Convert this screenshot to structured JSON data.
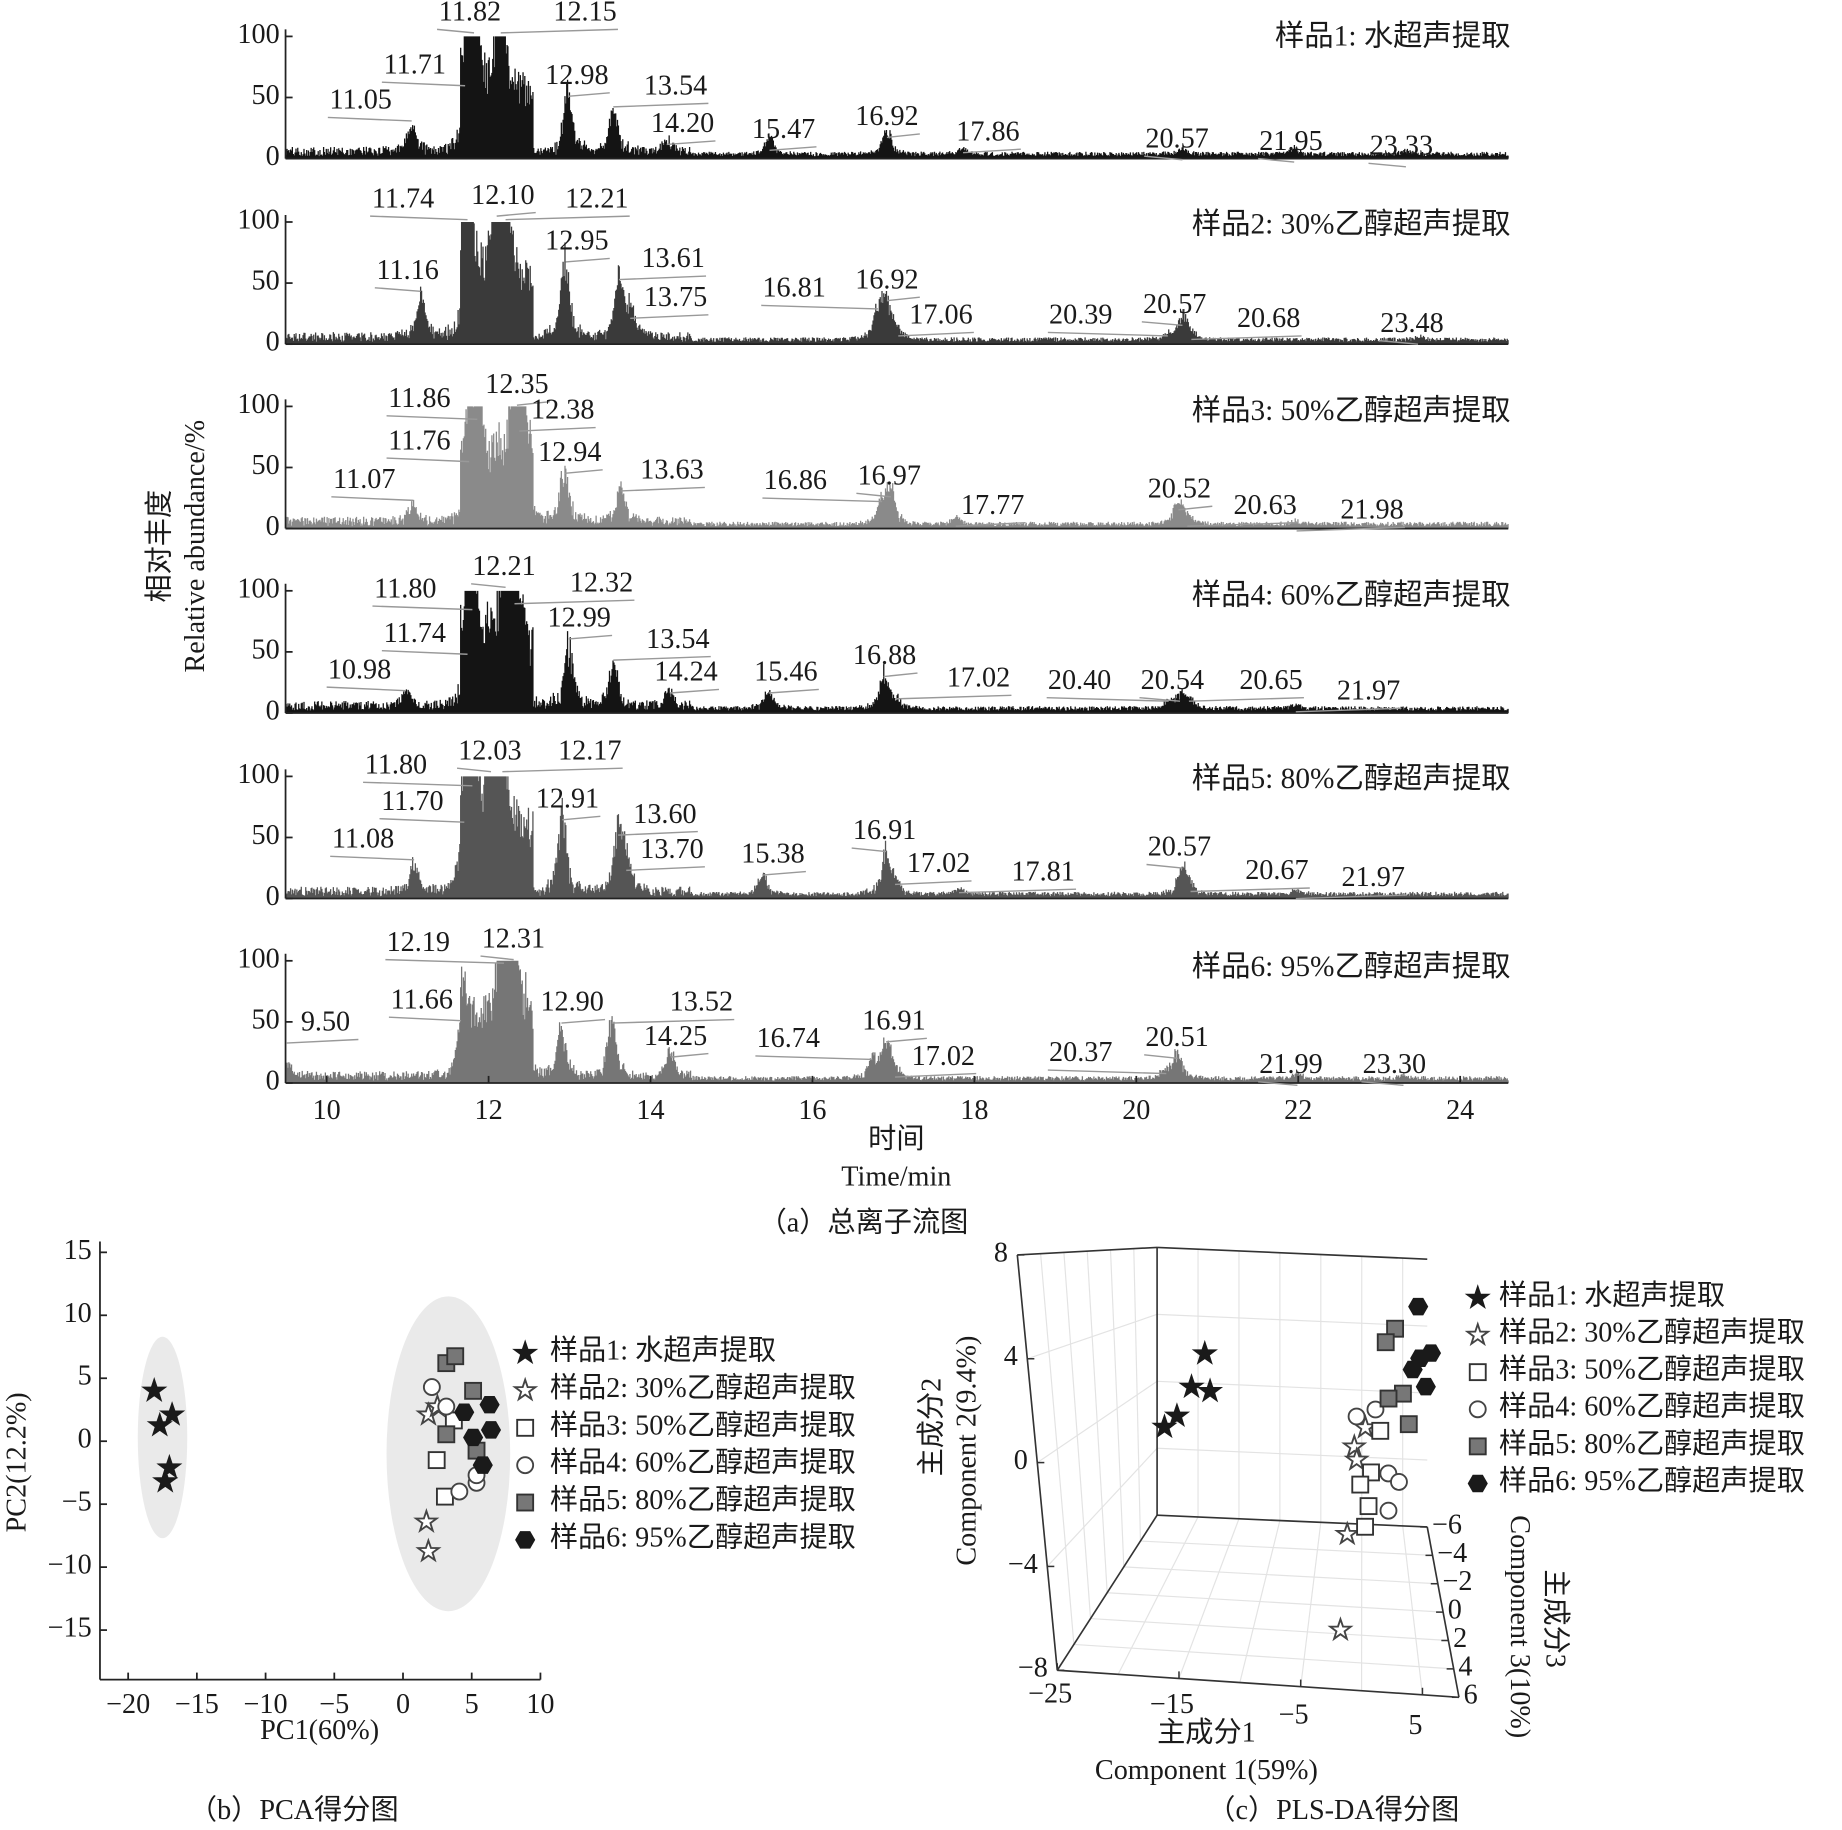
{
  "chart_data": [
    {
      "type": "line",
      "title": "（a）总离子流图",
      "xlabel": [
        "时间",
        "Time/min"
      ],
      "ylabel": [
        "相对丰度",
        "Relative abundance/%"
      ],
      "xlim": [
        9.5,
        24.6
      ],
      "ylim": [
        0,
        100
      ],
      "xticks": [
        "10",
        "12",
        "14",
        "16",
        "18",
        "20",
        "22",
        "24"
      ],
      "yticks": [
        "100",
        "50",
        "0"
      ],
      "series": [
        {
          "name": "样品1: 水超声提取",
          "color": "#141414",
          "peaks": [
            [
              "11.05",
              25
            ],
            [
              "11.71",
              40
            ],
            [
              "11.82",
              100
            ],
            [
              "12.15",
              95
            ],
            [
              "12.98",
              50
            ],
            [
              "13.54",
              40
            ],
            [
              "14.20",
              12
            ],
            [
              "15.47",
              15
            ],
            [
              "16.92",
              20
            ],
            [
              "17.86",
              6
            ],
            [
              "20.57",
              5
            ],
            [
              "21.95",
              5
            ],
            [
              "23.33",
              2
            ]
          ]
        },
        {
          "name": "样品2: 30%乙醇超声提取",
          "color": "#3a3a3a",
          "peaks": [
            [
              "11.16",
              40
            ],
            [
              "11.74",
              95
            ],
            [
              "12.10",
              100
            ],
            [
              "12.21",
              95
            ],
            [
              "12.95",
              65
            ],
            [
              "13.61",
              50
            ],
            [
              "13.75",
              25
            ],
            [
              "16.81",
              25
            ],
            [
              "16.92",
              35
            ],
            [
              "17.06",
              8
            ],
            [
              "20.39",
              5
            ],
            [
              "20.57",
              22
            ],
            [
              "20.68",
              6
            ],
            [
              "23.48",
              3
            ]
          ]
        },
        {
          "name": "样品3: 50%乙醇超声提取",
          "color": "#8a8a8a",
          "peaks": [
            [
              "11.07",
              15
            ],
            [
              "11.76",
              30
            ],
            [
              "11.86",
              85
            ],
            [
              "12.35",
              90
            ],
            [
              "12.38",
              85
            ],
            [
              "12.94",
              45
            ],
            [
              "13.63",
              30
            ],
            [
              "16.86",
              20
            ],
            [
              "16.97",
              28
            ],
            [
              "17.77",
              6
            ],
            [
              "20.52",
              20
            ],
            [
              "20.63",
              6
            ],
            [
              "21.98",
              3
            ]
          ]
        },
        {
          "name": "样品4: 60%乙醇超声提取",
          "color": "#141414",
          "peaks": [
            [
              "10.98",
              12
            ],
            [
              "11.74",
              35
            ],
            [
              "11.80",
              80
            ],
            [
              "12.21",
              100
            ],
            [
              "12.32",
              90
            ],
            [
              "12.99",
              55
            ],
            [
              "13.54",
              40
            ],
            [
              "14.24",
              15
            ],
            [
              "15.46",
              15
            ],
            [
              "16.88",
              30
            ],
            [
              "17.02",
              8
            ],
            [
              "20.40",
              6
            ],
            [
              "20.54",
              12
            ],
            [
              "20.65",
              8
            ],
            [
              "21.97",
              3
            ]
          ]
        },
        {
          "name": "样品5: 80%乙醇超声提取",
          "color": "#555555",
          "peaks": [
            [
              "11.08",
              25
            ],
            [
              "11.70",
              55
            ],
            [
              "11.80",
              90
            ],
            [
              "12.03",
              100
            ],
            [
              "12.17",
              98
            ],
            [
              "12.91",
              65
            ],
            [
              "13.60",
              50
            ],
            [
              "13.70",
              30
            ],
            [
              "15.38",
              18
            ],
            [
              "16.91",
              38
            ],
            [
              "17.02",
              10
            ],
            [
              "17.81",
              5
            ],
            [
              "20.57",
              25
            ],
            [
              "20.67",
              6
            ],
            [
              "21.97",
              3
            ]
          ]
        },
        {
          "name": "样品6: 95%乙醇超声提取",
          "color": "#767676",
          "peaks": [
            [
              "9.50",
              10
            ],
            [
              "11.66",
              50
            ],
            [
              "12.19",
              95
            ],
            [
              "12.31",
              100
            ],
            [
              "12.90",
              45
            ],
            [
              "13.52",
              48
            ],
            [
              "14.25",
              20
            ],
            [
              "16.74",
              18
            ],
            [
              "16.91",
              32
            ],
            [
              "17.02",
              8
            ],
            [
              "20.37",
              6
            ],
            [
              "20.51",
              22
            ],
            [
              "21.99",
              5
            ],
            [
              "23.30",
              3
            ]
          ]
        }
      ]
    },
    {
      "type": "scatter",
      "title": "（b）PCA得分图",
      "xlabel": "PC1(60%)",
      "ylabel": "PC2(12.2%)",
      "xlim": [
        -22,
        10
      ],
      "ylim": [
        -18.9,
        15.8
      ],
      "xticks": [
        -20,
        -15,
        -10,
        -5,
        0,
        5,
        10
      ],
      "yticks": [
        15,
        10,
        5,
        0,
        -5,
        -10,
        -15
      ],
      "legend": "right",
      "confidence_regions": [
        {
          "cx": -17.5,
          "cy": 0.3,
          "rx": 1.8,
          "ry": 8
        },
        {
          "cx": 3.3,
          "cy": -1,
          "rx": 4.5,
          "ry": 12.5
        }
      ],
      "series": [
        {
          "name": "样品1: 水超声提取",
          "marker": "star-filled",
          "points": [
            [
              -18.1,
              4.0
            ],
            [
              -16.8,
              2.1
            ],
            [
              -17.7,
              1.25
            ],
            [
              -17.0,
              -2.1
            ],
            [
              -17.3,
              -3.2
            ]
          ]
        },
        {
          "name": "样品2: 30%乙醇超声提取",
          "marker": "star-open",
          "points": [
            [
              1.85,
              2.1
            ],
            [
              2.5,
              2.75
            ],
            [
              1.7,
              -6.4
            ],
            [
              1.85,
              -8.75
            ]
          ]
        },
        {
          "name": "样品3: 50%乙醇超声提取",
          "marker": "square-open",
          "points": [
            [
              2.45,
              -1.5
            ],
            [
              3.05,
              -4.4
            ],
            [
              3.7,
              1.65
            ]
          ]
        },
        {
          "name": "样品4: 60%乙醇超声提取",
          "marker": "circle-open",
          "points": [
            [
              2.1,
              4.3
            ],
            [
              3.15,
              2.75
            ],
            [
              4.1,
              -4.0
            ],
            [
              5.35,
              -3.3
            ],
            [
              5.35,
              -2.7
            ]
          ]
        },
        {
          "name": "样品5: 80%乙醇超声提取",
          "marker": "square-grey",
          "points": [
            [
              3.15,
              6.2
            ],
            [
              3.8,
              6.75
            ],
            [
              5.1,
              4.0
            ],
            [
              3.15,
              0.55
            ],
            [
              5.35,
              -0.75
            ]
          ]
        },
        {
          "name": "样品6: 95%乙醇超声提取",
          "marker": "hexagon-filled",
          "points": [
            [
              4.45,
              2.3
            ],
            [
              6.3,
              2.9
            ],
            [
              5.1,
              0.3
            ],
            [
              6.4,
              0.9
            ],
            [
              5.8,
              -1.9
            ]
          ]
        }
      ]
    },
    {
      "type": "scatter3d",
      "title": "（c）PLS-DA得分图",
      "xlabel": [
        "主成分1",
        "Component 1(59%)"
      ],
      "ylabel": [
        "主成分2",
        "Component 2(9.4%)"
      ],
      "zlabel": [
        "主成分3",
        "Component 3(10%)"
      ],
      "xlim": [
        -25,
        8
      ],
      "ylim": [
        -8,
        8
      ],
      "zlim": [
        -6,
        6
      ],
      "xticks": [
        -25,
        -15,
        -5,
        5
      ],
      "yticks": [
        8,
        4,
        0,
        -4,
        -8
      ],
      "zticks": [
        -6,
        -4,
        -2,
        0,
        2,
        4,
        6
      ],
      "legend": "right",
      "series": [
        {
          "name": "样品1: 水超声提取",
          "marker": "star-filled",
          "points": [
            [
              -14.0,
              3.5,
              0
            ],
            [
              -15.5,
              1.9,
              0
            ],
            [
              -13.7,
              1.75,
              0
            ],
            [
              -17.1,
              0.5,
              0
            ],
            [
              -18.4,
              -0.06,
              0
            ]
          ]
        },
        {
          "name": "样品2: 30%乙醇超声提取",
          "marker": "star-open",
          "points": [
            [
              1.4,
              0.46,
              0
            ],
            [
              0.2,
              -0.47,
              0
            ],
            [
              0.36,
              -1.08,
              0
            ],
            [
              -1.0,
              -4.6,
              0
            ],
            [
              -1.6,
              -6.7,
              4
            ]
          ]
        },
        {
          "name": "样品3: 50%乙醇超声提取",
          "marker": "square-open",
          "points": [
            [
              2.85,
              0.35,
              0
            ],
            [
              1.7,
              -1.63,
              0
            ],
            [
              0.57,
              -2.23,
              0
            ],
            [
              1.26,
              -3.22,
              0
            ],
            [
              0.8,
              -4.2,
              0
            ]
          ]
        },
        {
          "name": "样品4: 60%乙醇超声提取",
          "marker": "circle-open",
          "points": [
            [
              2.5,
              1.34,
              0
            ],
            [
              0.6,
              0.96,
              0
            ],
            [
              3.4,
              -1.63,
              0
            ],
            [
              4.4,
              -2.0,
              0
            ],
            [
              3.2,
              -3.38,
              0
            ]
          ]
        },
        {
          "name": "样品5: 80%乙醇超声提取",
          "marker": "square-grey",
          "points": [
            [
              4.9,
              5.19,
              0
            ],
            [
              3.9,
              4.53,
              0
            ],
            [
              5.3,
              2.16,
              0
            ],
            [
              3.85,
              1.89,
              0
            ],
            [
              5.7,
              0.74,
              0
            ]
          ]
        },
        {
          "name": "样品6: 95%乙醇超声提取",
          "marker": "hexagon-filled",
          "points": [
            [
              7.3,
              6.29,
              0
            ],
            [
              8.3,
              4.14,
              0
            ],
            [
              7.2,
              3.87,
              0
            ],
            [
              6.4,
              3.32,
              0
            ],
            [
              7.6,
              2.55,
              0
            ]
          ]
        }
      ]
    }
  ]
}
